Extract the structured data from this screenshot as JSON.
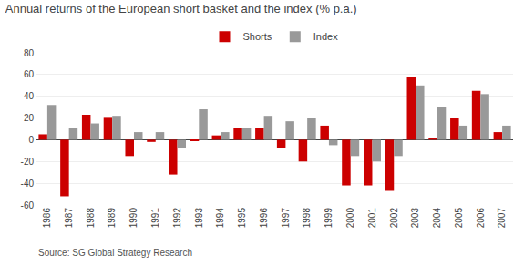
{
  "chart_data": {
    "type": "bar",
    "title": "Annual returns of the European short basket and the index (% p.a.)",
    "source": "Source: SG Global Strategy Research",
    "categories": [
      "1986",
      "1987",
      "1988",
      "1989",
      "1990",
      "1991",
      "1992",
      "1993",
      "1994",
      "1995",
      "1996",
      "1997",
      "1998",
      "1999",
      "2000",
      "2001",
      "2002",
      "2003",
      "2004",
      "2005",
      "2006",
      "2007"
    ],
    "series": [
      {
        "name": "Shorts",
        "color": "#cc0000",
        "values": [
          5,
          -52,
          23,
          21,
          -15,
          -2,
          -32,
          -1,
          4,
          11,
          11,
          -8,
          -20,
          13,
          -42,
          -42,
          -47,
          58,
          2,
          20,
          45,
          7
        ]
      },
      {
        "name": "Index",
        "color": "#999999",
        "values": [
          32,
          11,
          15,
          22,
          7,
          7,
          -8,
          28,
          7,
          11,
          22,
          17,
          20,
          -5,
          -15,
          -20,
          -15,
          50,
          30,
          13,
          42,
          13
        ]
      }
    ],
    "ylim": [
      -60,
      80
    ],
    "yticks": [
      -60,
      -40,
      -20,
      0,
      20,
      40,
      60,
      80
    ],
    "grid": true,
    "legend": "top"
  }
}
